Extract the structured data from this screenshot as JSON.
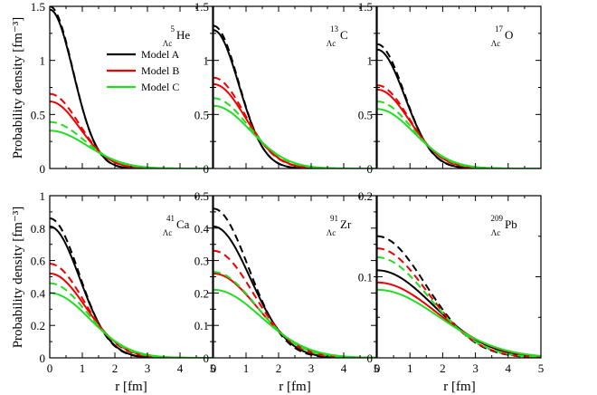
{
  "figure": {
    "xlabel": "r [fm]",
    "ylabel": "Probability density [fm⁻³]",
    "legend": [
      {
        "name": "Model A",
        "color": "#000000"
      },
      {
        "name": "Model B",
        "color": "#ee0000"
      },
      {
        "name": "Model C",
        "color": "#22dd22"
      }
    ],
    "colors": {
      "model_a": "#000000",
      "model_b": "#ee0000",
      "model_c": "#22dd22"
    }
  },
  "chart_data": [
    {
      "type": "line",
      "nucleus": {
        "mass": "5",
        "baryon": "Λc",
        "element": "He"
      },
      "xlim": [
        0,
        5
      ],
      "ylim": [
        0,
        1.5
      ],
      "x_ticks": [
        0,
        1,
        2,
        3,
        4,
        5
      ],
      "y_ticks": [
        0,
        0.5,
        1,
        1.5
      ],
      "x_tick_labels": [
        "0",
        "1",
        "2",
        "3",
        "4",
        "5"
      ],
      "y_tick_labels": [
        "0",
        "0.5",
        "1",
        "1.5"
      ],
      "show_x_tick_labels": false,
      "show_y_tick_labels": true,
      "series": [
        {
          "name": "Model A",
          "style": "solid",
          "peak": 1.47,
          "width": 1.02
        },
        {
          "name": "Model A",
          "style": "dashed",
          "peak": 1.5,
          "width": 1.01
        },
        {
          "name": "Model B",
          "style": "solid",
          "peak": 0.62,
          "width": 1.3
        },
        {
          "name": "Model B",
          "style": "dashed",
          "peak": 0.69,
          "width": 1.26
        },
        {
          "name": "Model C",
          "style": "solid",
          "peak": 0.35,
          "width": 1.62
        },
        {
          "name": "Model C",
          "style": "dashed",
          "peak": 0.43,
          "width": 1.5
        }
      ]
    },
    {
      "type": "line",
      "nucleus": {
        "mass": "13",
        "baryon": "Λc",
        "element": "C"
      },
      "xlim": [
        0,
        5
      ],
      "ylim": [
        0,
        1.5
      ],
      "x_ticks": [
        0,
        1,
        2,
        3,
        4,
        5
      ],
      "y_ticks": [
        0,
        0.5,
        1,
        1.5
      ],
      "x_tick_labels": [
        "0",
        "1",
        "2",
        "3",
        "4",
        "5"
      ],
      "y_tick_labels": [
        "0",
        "0.5",
        "1",
        "1.5"
      ],
      "show_x_tick_labels": false,
      "show_y_tick_labels": true,
      "series": [
        {
          "name": "Model A",
          "style": "solid",
          "peak": 1.28,
          "width": 1.1
        },
        {
          "name": "Model A",
          "style": "dashed",
          "peak": 1.32,
          "width": 1.09
        },
        {
          "name": "Model B",
          "style": "solid",
          "peak": 0.78,
          "width": 1.38
        },
        {
          "name": "Model B",
          "style": "dashed",
          "peak": 0.84,
          "width": 1.34
        },
        {
          "name": "Model C",
          "style": "solid",
          "peak": 0.58,
          "width": 1.6
        },
        {
          "name": "Model C",
          "style": "dashed",
          "peak": 0.65,
          "width": 1.52
        }
      ]
    },
    {
      "type": "line",
      "nucleus": {
        "mass": "17",
        "baryon": "Λc",
        "element": "O"
      },
      "xlim": [
        0,
        5
      ],
      "ylim": [
        0,
        1.5
      ],
      "x_ticks": [
        0,
        1,
        2,
        3,
        4,
        5
      ],
      "y_ticks": [
        0,
        0.5,
        1,
        1.5
      ],
      "x_tick_labels": [
        "0",
        "1",
        "2",
        "3",
        "4",
        "5"
      ],
      "y_tick_labels": [
        "0",
        "0.5",
        "1",
        "1.5"
      ],
      "show_x_tick_labels": false,
      "show_y_tick_labels": true,
      "series": [
        {
          "name": "Model A",
          "style": "solid",
          "peak": 1.1,
          "width": 1.19
        },
        {
          "name": "Model A",
          "style": "dashed",
          "peak": 1.15,
          "width": 1.17
        },
        {
          "name": "Model B",
          "style": "solid",
          "peak": 0.73,
          "width": 1.4
        },
        {
          "name": "Model B",
          "style": "dashed",
          "peak": 0.77,
          "width": 1.37
        },
        {
          "name": "Model C",
          "style": "solid",
          "peak": 0.55,
          "width": 1.58
        },
        {
          "name": "Model C",
          "style": "dashed",
          "peak": 0.62,
          "width": 1.5
        }
      ]
    },
    {
      "type": "line",
      "nucleus": {
        "mass": "41",
        "baryon": "Λc",
        "element": "Ca"
      },
      "xlim": [
        0,
        5
      ],
      "ylim": [
        0,
        1.0
      ],
      "x_ticks": [
        0,
        1,
        2,
        3,
        4,
        5
      ],
      "y_ticks": [
        0,
        0.2,
        0.4,
        0.6,
        0.8,
        1.0
      ],
      "x_tick_labels": [
        "0",
        "1",
        "2",
        "3",
        "4",
        "5"
      ],
      "y_tick_labels": [
        "0",
        "0.2",
        "0.4",
        "0.6",
        "0.8",
        "1"
      ],
      "show_x_tick_labels": true,
      "show_y_tick_labels": true,
      "series": [
        {
          "name": "Model A",
          "style": "solid",
          "peak": 0.81,
          "width": 1.3
        },
        {
          "name": "Model A",
          "style": "dashed",
          "peak": 0.86,
          "width": 1.27
        },
        {
          "name": "Model B",
          "style": "solid",
          "peak": 0.52,
          "width": 1.55
        },
        {
          "name": "Model B",
          "style": "dashed",
          "peak": 0.58,
          "width": 1.48
        },
        {
          "name": "Model C",
          "style": "solid",
          "peak": 0.4,
          "width": 1.72
        },
        {
          "name": "Model C",
          "style": "dashed",
          "peak": 0.46,
          "width": 1.62
        }
      ]
    },
    {
      "type": "line",
      "nucleus": {
        "mass": "91",
        "baryon": "Λc",
        "element": "Zr"
      },
      "xlim": [
        0,
        5
      ],
      "ylim": [
        0,
        0.5
      ],
      "x_ticks": [
        0,
        1,
        2,
        3,
        4,
        5
      ],
      "y_ticks": [
        0,
        0.1,
        0.2,
        0.3,
        0.4,
        0.5
      ],
      "x_tick_labels": [
        "0",
        "1",
        "2",
        "3",
        "4",
        "5"
      ],
      "y_tick_labels": [
        "0",
        "0.1",
        "0.2",
        "0.3",
        "0.4",
        "0.5"
      ],
      "show_x_tick_labels": true,
      "show_y_tick_labels": true,
      "series": [
        {
          "name": "Model A",
          "style": "solid",
          "peak": 0.405,
          "width": 1.6
        },
        {
          "name": "Model A",
          "style": "dashed",
          "peak": 0.46,
          "width": 1.52
        },
        {
          "name": "Model B",
          "style": "solid",
          "peak": 0.26,
          "width": 1.88
        },
        {
          "name": "Model B",
          "style": "dashed",
          "peak": 0.33,
          "width": 1.72
        },
        {
          "name": "Model C",
          "style": "solid",
          "peak": 0.21,
          "width": 2.05
        },
        {
          "name": "Model C",
          "style": "dashed",
          "peak": 0.265,
          "width": 1.86
        }
      ]
    },
    {
      "type": "line",
      "nucleus": {
        "mass": "209",
        "baryon": "Λc",
        "element": "Pb"
      },
      "xlim": [
        0,
        5
      ],
      "ylim": [
        0,
        0.2
      ],
      "x_ticks": [
        0,
        1,
        2,
        3,
        4,
        5
      ],
      "y_ticks": [
        0,
        0.1,
        0.2
      ],
      "x_tick_labels": [
        "0",
        "1",
        "2",
        "3",
        "4",
        "5"
      ],
      "y_tick_labels": [
        "0",
        "0.1",
        "0.2"
      ],
      "show_x_tick_labels": true,
      "show_y_tick_labels": true,
      "series": [
        {
          "name": "Model A",
          "style": "solid",
          "peak": 0.108,
          "width": 2.4
        },
        {
          "name": "Model A",
          "style": "dashed",
          "peak": 0.15,
          "width": 2.08
        },
        {
          "name": "Model B",
          "style": "solid",
          "peak": 0.093,
          "width": 2.55
        },
        {
          "name": "Model B",
          "style": "dashed",
          "peak": 0.135,
          "width": 2.15
        },
        {
          "name": "Model C",
          "style": "solid",
          "peak": 0.084,
          "width": 2.65
        },
        {
          "name": "Model C",
          "style": "dashed",
          "peak": 0.124,
          "width": 2.22
        }
      ]
    }
  ]
}
